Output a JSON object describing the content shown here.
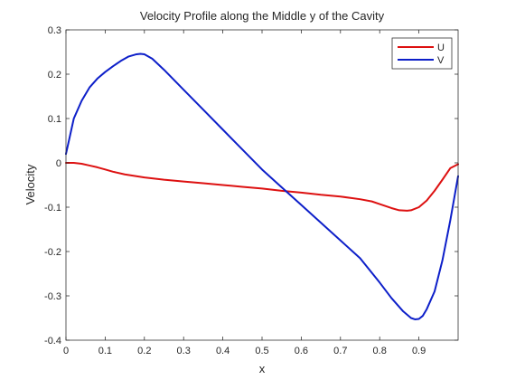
{
  "chart_data": {
    "type": "line",
    "title": "Velocity Profile along the Middle y of the Cavity",
    "xlabel": "x",
    "ylabel": "Velocity",
    "xlim": [
      0,
      1
    ],
    "ylim": [
      -0.4,
      0.3
    ],
    "xticks": [
      0,
      0.1,
      0.2,
      0.3,
      0.4,
      0.5,
      0.6,
      0.7,
      0.8,
      0.9
    ],
    "xtick_labels": [
      "0",
      "0.1",
      "0.2",
      "0.3",
      "0.4",
      "0.5",
      "0.6",
      "0.7",
      "0.8",
      "0.9"
    ],
    "yticks": [
      -0.4,
      -0.3,
      -0.2,
      -0.1,
      0,
      0.1,
      0.2,
      0.3
    ],
    "ytick_labels": [
      "-0.4",
      "-0.3",
      "-0.2",
      "-0.1",
      "0",
      "0.1",
      "0.2",
      "0.3"
    ],
    "grid": false,
    "legend_position": "top-right",
    "series": [
      {
        "name": "U",
        "color": "#dd1111",
        "x": [
          0,
          0.02,
          0.04,
          0.06,
          0.08,
          0.1,
          0.12,
          0.15,
          0.2,
          0.25,
          0.3,
          0.35,
          0.4,
          0.45,
          0.5,
          0.55,
          0.6,
          0.65,
          0.7,
          0.75,
          0.78,
          0.8,
          0.83,
          0.85,
          0.87,
          0.88,
          0.9,
          0.92,
          0.94,
          0.96,
          0.98,
          1.0
        ],
        "y": [
          0,
          0,
          -0.002,
          -0.006,
          -0.01,
          -0.015,
          -0.02,
          -0.026,
          -0.033,
          -0.038,
          -0.042,
          -0.046,
          -0.05,
          -0.054,
          -0.058,
          -0.063,
          -0.067,
          -0.072,
          -0.076,
          -0.082,
          -0.087,
          -0.093,
          -0.102,
          -0.107,
          -0.108,
          -0.107,
          -0.1,
          -0.085,
          -0.063,
          -0.038,
          -0.012,
          -0.003
        ]
      },
      {
        "name": "V",
        "color": "#0d1fc9",
        "x": [
          0,
          0.01,
          0.02,
          0.04,
          0.06,
          0.08,
          0.1,
          0.12,
          0.14,
          0.16,
          0.18,
          0.19,
          0.2,
          0.22,
          0.25,
          0.3,
          0.35,
          0.4,
          0.45,
          0.5,
          0.55,
          0.6,
          0.65,
          0.7,
          0.75,
          0.8,
          0.83,
          0.86,
          0.88,
          0.89,
          0.9,
          0.91,
          0.92,
          0.94,
          0.96,
          0.98,
          1.0
        ],
        "y": [
          0.02,
          0.06,
          0.1,
          0.14,
          0.17,
          0.19,
          0.205,
          0.218,
          0.23,
          0.24,
          0.245,
          0.246,
          0.245,
          0.235,
          0.21,
          0.165,
          0.12,
          0.075,
          0.03,
          -0.015,
          -0.055,
          -0.095,
          -0.135,
          -0.175,
          -0.215,
          -0.27,
          -0.305,
          -0.335,
          -0.35,
          -0.353,
          -0.352,
          -0.345,
          -0.33,
          -0.29,
          -0.22,
          -0.13,
          -0.03
        ]
      }
    ]
  }
}
